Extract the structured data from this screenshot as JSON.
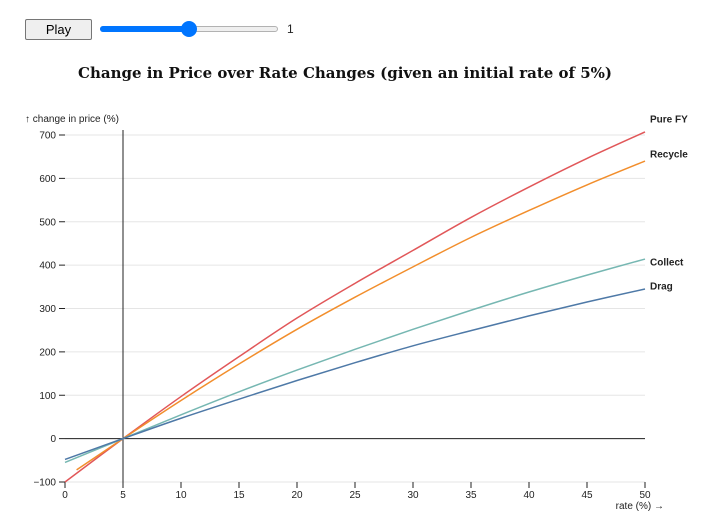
{
  "controls": {
    "play_label": "Play",
    "slider": {
      "min": 0,
      "max": 2,
      "value": 1
    },
    "slider_value_text": "1"
  },
  "chart_data": {
    "type": "line",
    "title": "Change in Price over Rate Changes (given an initial rate of 5%)",
    "xlabel": "rate (%) →",
    "ylabel": "↑ change in price (%)",
    "xlim": [
      0,
      50
    ],
    "ylim": [
      -100,
      700
    ],
    "x_ticks": [
      0,
      5,
      10,
      15,
      20,
      25,
      30,
      35,
      40,
      45,
      50
    ],
    "y_ticks": [
      -100,
      0,
      100,
      200,
      300,
      400,
      500,
      600,
      700
    ],
    "y_tick_labels": [
      "−100",
      "0",
      "100",
      "200",
      "300",
      "400",
      "500",
      "600",
      "700"
    ],
    "grid": {
      "horizontal": true,
      "vertical": false
    },
    "reference_lines": {
      "x": 5,
      "y": 0
    },
    "legend": "labels at line ends (right)",
    "x": [
      0,
      5,
      10,
      15,
      20,
      25,
      30,
      35,
      40,
      45,
      50
    ],
    "series": [
      {
        "name": "Pure FY",
        "color": "#e15759",
        "x": [
          0,
          5,
          10,
          15,
          20,
          25,
          30,
          35,
          40,
          45,
          50
        ],
        "values": [
          -100,
          0,
          97,
          189,
          278,
          358,
          434,
          510,
          580,
          646,
          707
        ]
      },
      {
        "name": "Recycle",
        "color": "#f28e2c",
        "x": [
          1,
          5,
          10,
          15,
          20,
          25,
          30,
          35,
          40,
          45,
          50
        ],
        "values": [
          -72,
          0,
          88,
          172,
          252,
          326,
          396,
          464,
          526,
          585,
          640
        ]
      },
      {
        "name": "Collect",
        "color": "#76b7b2",
        "x": [
          0,
          5,
          10,
          15,
          20,
          25,
          30,
          35,
          40,
          45,
          50
        ],
        "values": [
          -55,
          0,
          55,
          108,
          158,
          206,
          252,
          296,
          338,
          377,
          414
        ]
      },
      {
        "name": "Drag",
        "color": "#4e79a7",
        "x": [
          0,
          5,
          10,
          15,
          20,
          25,
          30,
          35,
          40,
          45,
          50
        ],
        "values": [
          -48,
          0,
          47,
          91,
          134,
          175,
          214,
          249,
          283,
          315,
          345
        ]
      }
    ]
  }
}
